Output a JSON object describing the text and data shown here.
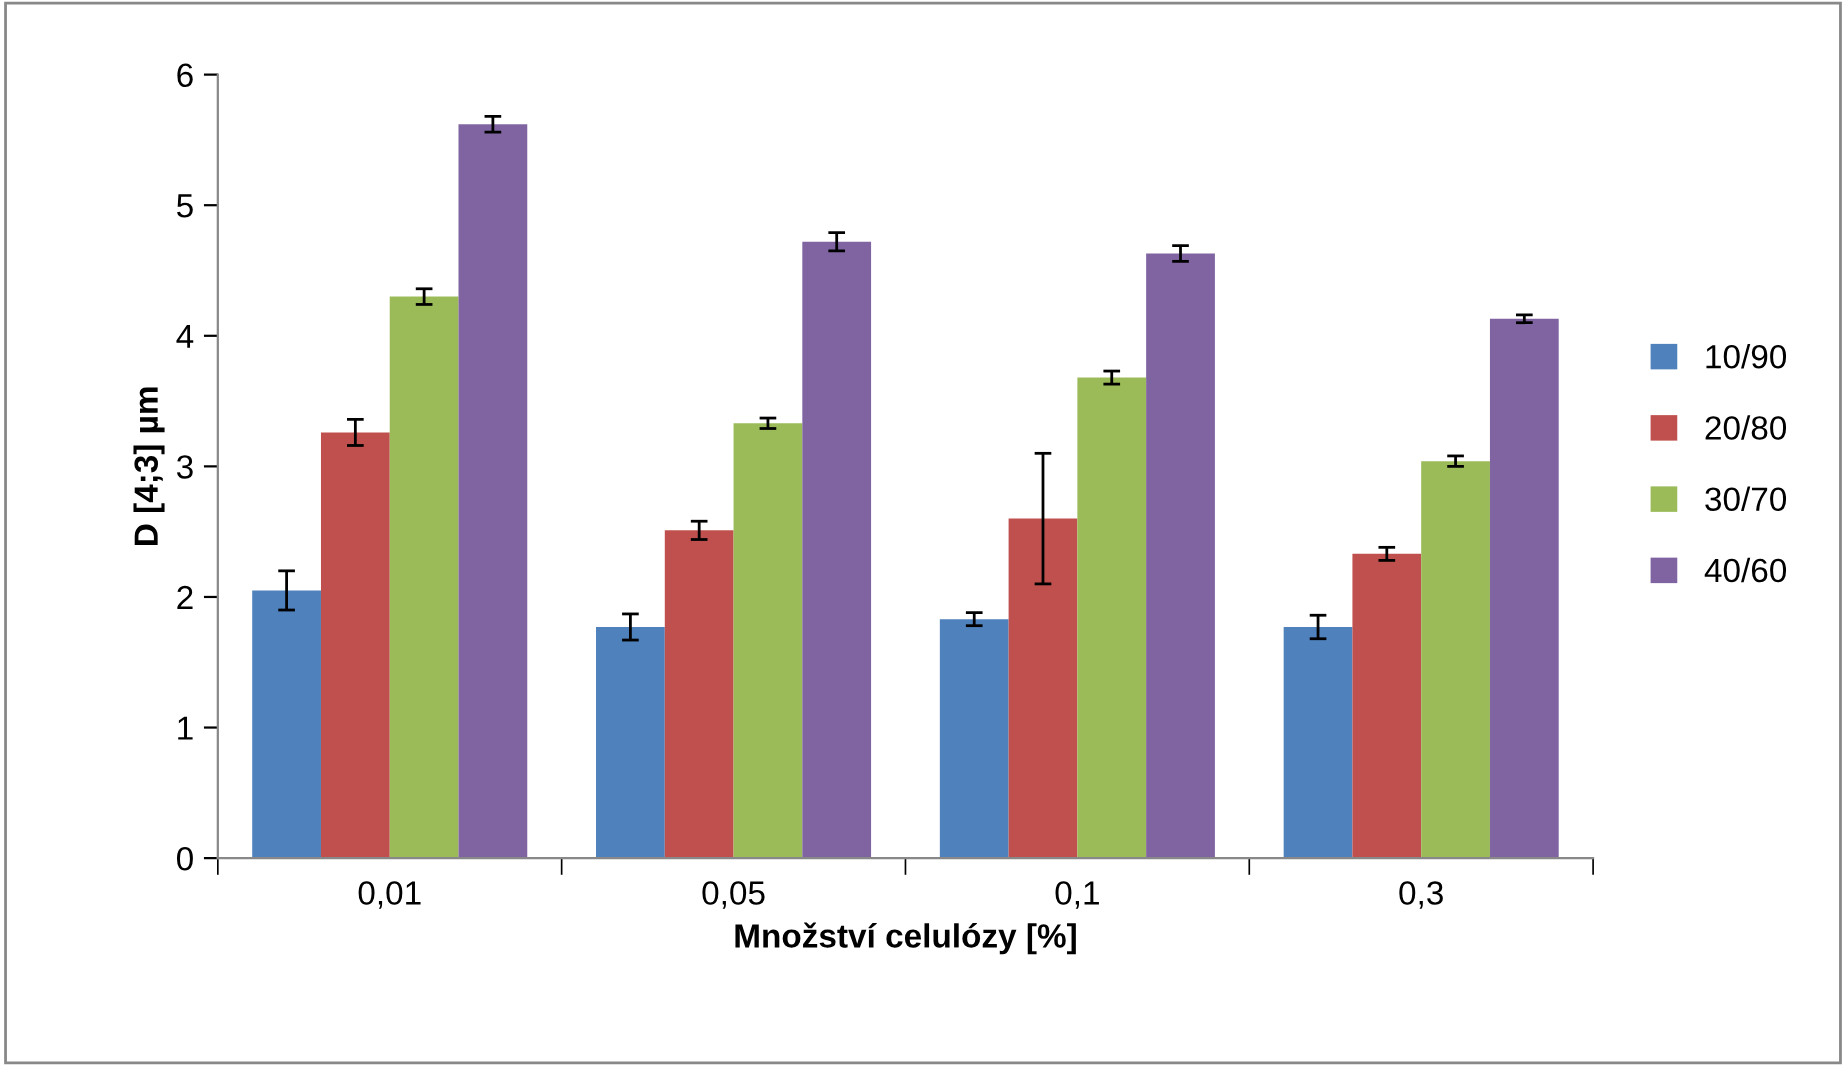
{
  "chart_data": {
    "type": "bar",
    "xlabel": "Množství celulózy [%]",
    "ylabel": "D [4;3] µm",
    "categories": [
      "0,01",
      "0,05",
      "0,1",
      "0,3"
    ],
    "series": [
      {
        "name": "10/90",
        "color": "#4f81bd",
        "values": [
          2.05,
          1.77,
          1.83,
          1.77
        ],
        "errors": [
          0.15,
          0.1,
          0.05,
          0.09
        ]
      },
      {
        "name": "20/80",
        "color": "#c0504d",
        "values": [
          3.26,
          2.51,
          2.6,
          2.33
        ],
        "errors": [
          0.1,
          0.07,
          0.5,
          0.05
        ]
      },
      {
        "name": "30/70",
        "color": "#9bbb59",
        "values": [
          4.3,
          3.33,
          3.68,
          3.04
        ],
        "errors": [
          0.06,
          0.04,
          0.05,
          0.04
        ]
      },
      {
        "name": "40/60",
        "color": "#8064a2",
        "values": [
          5.62,
          4.72,
          4.63,
          4.13
        ],
        "errors": [
          0.06,
          0.07,
          0.06,
          0.03
        ]
      }
    ],
    "ylim": [
      0,
      6
    ],
    "yticks": [
      0,
      1,
      2,
      3,
      4,
      5,
      6
    ],
    "grid": false,
    "legend": "right"
  }
}
